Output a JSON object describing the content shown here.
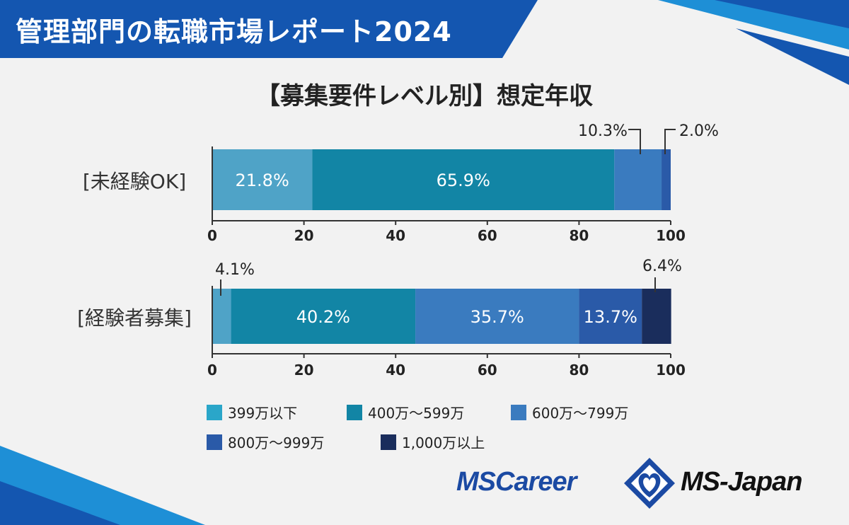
{
  "header": {
    "title": "管理部門の転職市場レポート2024"
  },
  "colors": {
    "banner": "#1456b0",
    "accent": "#1e8fd6",
    "band_399": "#4fa3c7",
    "band_400_599": "#1285a5",
    "band_600_799": "#3a7bbf",
    "band_800_999": "#2a5aa8",
    "band_1000": "#1a2d5c"
  },
  "chart_data": {
    "type": "bar",
    "orientation": "horizontal",
    "stacked": true,
    "title": "【募集要件レベル別】想定年収",
    "xlim": [
      0,
      100
    ],
    "xticks": [
      "0",
      "20",
      "40",
      "60",
      "80",
      "100"
    ],
    "categories": [
      "[未経験OK]",
      "[経験者募集]"
    ],
    "series": [
      {
        "name": "399万以下",
        "values": [
          21.8,
          4.1
        ],
        "labels": [
          "21.8%",
          "4.1%"
        ]
      },
      {
        "name": "400万～599万",
        "values": [
          65.9,
          40.2
        ],
        "labels": [
          "65.9%",
          "40.2%"
        ]
      },
      {
        "name": "600万～799万",
        "values": [
          10.3,
          35.7
        ],
        "labels": [
          "10.3%",
          "35.7%"
        ]
      },
      {
        "name": "800万～999万",
        "values": [
          2.0,
          13.7
        ],
        "labels": [
          "2.0%",
          "13.7%"
        ]
      },
      {
        "name": "1,000万以上",
        "values": [
          0,
          6.4
        ],
        "labels": [
          "",
          "6.4%"
        ]
      }
    ],
    "legend_position": "bottom"
  },
  "logos": {
    "left": "MSCareer",
    "right": "MS-Japan"
  }
}
